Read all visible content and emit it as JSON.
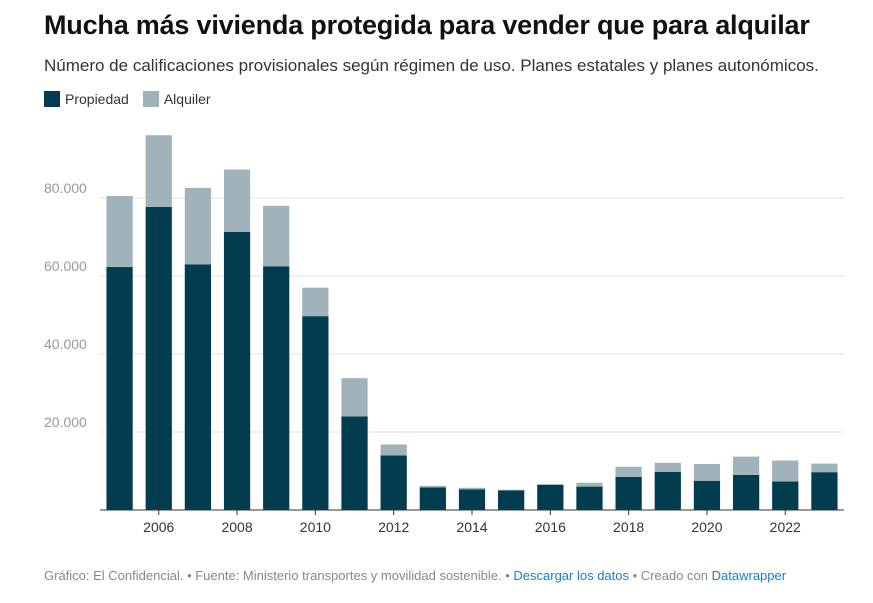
{
  "title": "Mucha más vivienda protegida para vender que para alquilar",
  "subtitle": "Número de calificaciones provisionales según régimen de uso. Planes estatales y planes autonómicos.",
  "colors": {
    "propiedad": "#023d4f",
    "alquiler": "#a1b3ba",
    "grid": "#e2e2e2",
    "axis": "#333333"
  },
  "legend": [
    {
      "label": "Propiedad",
      "color": "#023d4f"
    },
    {
      "label": "Alquiler",
      "color": "#a1b3ba"
    }
  ],
  "footer": {
    "source": "Gráfico: El Confidencial. • Fuente: Ministerio transportes y movilidad sostenible. •",
    "download": "Descargar los datos",
    "created": "• Creado con",
    "tool": "Datawrapper"
  },
  "chart_data": {
    "type": "bar",
    "stacked": true,
    "categories": [
      "2005",
      "2006",
      "2007",
      "2008",
      "2009",
      "2010",
      "2011",
      "2012",
      "2013",
      "2014",
      "2015",
      "2016",
      "2017",
      "2018",
      "2019",
      "2020",
      "2021",
      "2022",
      "2023"
    ],
    "x_tick_labels": [
      "2006",
      "2008",
      "2010",
      "2012",
      "2014",
      "2016",
      "2018",
      "2020",
      "2022"
    ],
    "series": [
      {
        "name": "Propiedad",
        "values": [
          62300,
          77700,
          63000,
          71300,
          62500,
          49700,
          24000,
          14000,
          5800,
          5300,
          5000,
          6500,
          6000,
          8500,
          9800,
          7500,
          9000,
          7300,
          9700
        ]
      },
      {
        "name": "Alquiler",
        "values": [
          18200,
          18400,
          19600,
          16000,
          15500,
          7300,
          9800,
          2800,
          400,
          400,
          200,
          0,
          1000,
          2600,
          2300,
          4300,
          4700,
          5400,
          2200
        ]
      }
    ],
    "y_ticks": [
      "20.000",
      "40.000",
      "60.000",
      "80.000"
    ],
    "y_tick_values": [
      20000,
      40000,
      60000,
      80000
    ],
    "ylim": [
      0,
      100000
    ],
    "grid": true,
    "legend_position": "top-left"
  }
}
